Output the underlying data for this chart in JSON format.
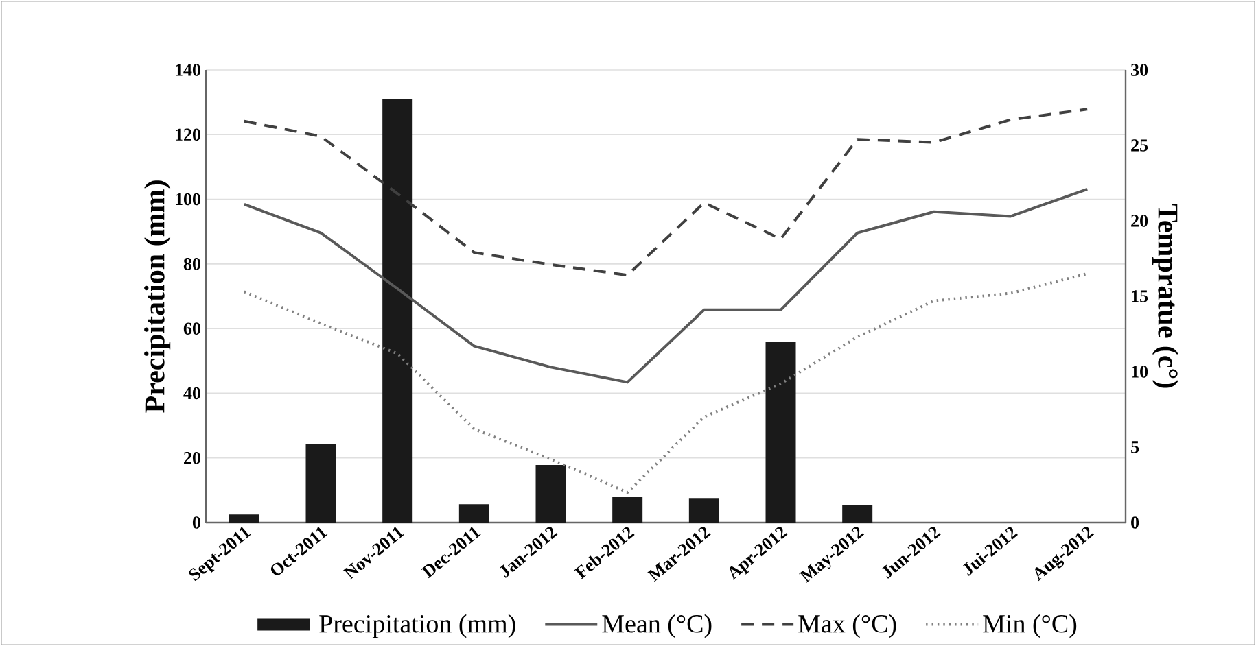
{
  "chart_data": {
    "type": "bar",
    "categories": [
      "Sept-2011",
      "Oct-2011",
      "Nov-2011",
      "Dec-2011",
      "Jan-2012",
      "Feb-2012",
      "Mar-2012",
      "Apr-2012",
      "May-2012",
      "Jun-2012",
      "Jui-2012",
      "Aug-2012"
    ],
    "ylabel": "Precipitation (mm)",
    "y2label": "Tempratue (c°)",
    "ylim": [
      0,
      140
    ],
    "yticks": [
      0,
      20,
      40,
      60,
      80,
      100,
      120,
      140
    ],
    "y2lim": [
      0,
      30
    ],
    "y2ticks": [
      0,
      5,
      10,
      15,
      20,
      25,
      30
    ],
    "grid": "y",
    "legend": "bottom",
    "series": [
      {
        "name": "Precipitation (mm)",
        "color": "#1a1a1a",
        "values": [
          2.5,
          24.2,
          131,
          5.7,
          17.8,
          8.0,
          7.6,
          55.9,
          5.4,
          0,
          0,
          0
        ]
      },
      {
        "name": "Mean (°C)",
        "type": "line",
        "axis": "y2",
        "color": "#595959",
        "line_style": "solid",
        "values": [
          21.1,
          19.2,
          15.5,
          11.7,
          10.3,
          9.3,
          14.1,
          14.1,
          19.2,
          20.6,
          20.3,
          22.1
        ]
      },
      {
        "name": "Max (°C)",
        "type": "line",
        "axis": "y2",
        "color": "#404040",
        "line_style": "dashed",
        "values": [
          26.6,
          25.6,
          21.8,
          17.9,
          17.1,
          16.4,
          21.2,
          18.8,
          25.4,
          25.2,
          26.7,
          27.4
        ]
      },
      {
        "name": "Min (°C)",
        "type": "line",
        "axis": "y2",
        "color": "#808080",
        "line_style": "dotted",
        "values": [
          15.3,
          13.2,
          11.2,
          6.2,
          4.2,
          2.0,
          7.0,
          9.2,
          12.3,
          14.7,
          15.2,
          16.5
        ]
      }
    ]
  }
}
